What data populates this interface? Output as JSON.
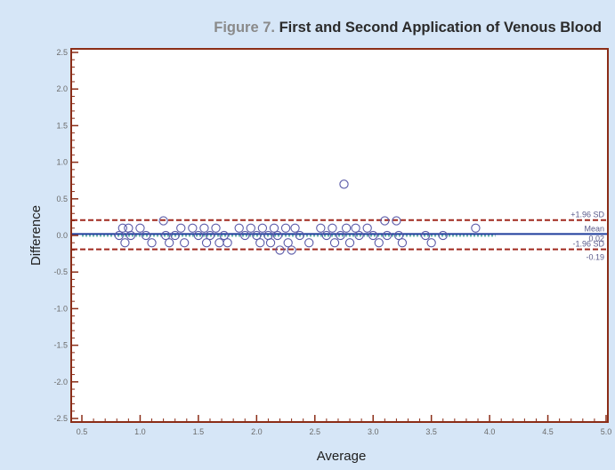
{
  "figure": {
    "number": "Figure 7.",
    "title": "First and Second Application of Venous Blood"
  },
  "colors": {
    "background": "#d6e6f7",
    "plot_background": "#ffffff",
    "frame": "#8b2d17",
    "points": "#5a5aa8",
    "mean_line": "#1f3c9c",
    "sd_lines": "#a0281e",
    "zero_line": "#2e9a8a",
    "axis_text": "#6a6a6a",
    "label_text": "#1e1e1e",
    "annotation_text": "#5a5a8a"
  },
  "chart_data": {
    "type": "scatter",
    "xlabel": "Average",
    "ylabel": "Difference",
    "xlim": [
      0.5,
      5.0
    ],
    "ylim": [
      -2.5,
      2.5
    ],
    "x_ticks": [
      "0.5",
      "1.0",
      "1.5",
      "2.0",
      "2.5",
      "3.0",
      "3.5",
      "4.0",
      "4.5",
      "5.0"
    ],
    "x_tick_values": [
      0.5,
      1.0,
      1.5,
      2.0,
      2.5,
      3.0,
      3.5,
      4.0,
      4.5,
      5.0
    ],
    "y_ticks": [
      "2.5",
      "2.0",
      "1.5",
      "1.0",
      "0.5",
      "0.0",
      "-0.5",
      "-1.0",
      "-1.5",
      "-2.0",
      "-2.5"
    ],
    "y_tick_values": [
      2.5,
      2.0,
      1.5,
      1.0,
      0.5,
      0.0,
      -0.5,
      -1.0,
      -1.5,
      -2.0,
      -2.5
    ],
    "grid": false,
    "reference_lines": [
      {
        "label": "+1.96 SD",
        "y": 0.21,
        "style": "dashed"
      },
      {
        "label": "Mean",
        "value_label": "0.02",
        "y": 0.02,
        "style": "solid"
      },
      {
        "label": "-1.96 SD",
        "value_label": "-0.19",
        "y": -0.19,
        "style": "dashed"
      }
    ],
    "points": [
      {
        "x": 0.82,
        "y": 0.0
      },
      {
        "x": 0.85,
        "y": 0.1
      },
      {
        "x": 0.87,
        "y": -0.1
      },
      {
        "x": 0.9,
        "y": 0.1
      },
      {
        "x": 0.92,
        "y": 0.0
      },
      {
        "x": 1.0,
        "y": 0.1
      },
      {
        "x": 1.05,
        "y": 0.0
      },
      {
        "x": 1.1,
        "y": -0.1
      },
      {
        "x": 1.2,
        "y": 0.2
      },
      {
        "x": 1.22,
        "y": 0.0
      },
      {
        "x": 1.25,
        "y": -0.1
      },
      {
        "x": 1.3,
        "y": 0.0
      },
      {
        "x": 1.35,
        "y": 0.1
      },
      {
        "x": 1.38,
        "y": -0.1
      },
      {
        "x": 1.45,
        "y": 0.1
      },
      {
        "x": 1.5,
        "y": 0.0
      },
      {
        "x": 1.55,
        "y": 0.1
      },
      {
        "x": 1.57,
        "y": -0.1
      },
      {
        "x": 1.6,
        "y": 0.0
      },
      {
        "x": 1.65,
        "y": 0.1
      },
      {
        "x": 1.68,
        "y": -0.1
      },
      {
        "x": 1.72,
        "y": 0.0
      },
      {
        "x": 1.75,
        "y": -0.1
      },
      {
        "x": 1.85,
        "y": 0.1
      },
      {
        "x": 1.9,
        "y": 0.0
      },
      {
        "x": 1.95,
        "y": 0.1
      },
      {
        "x": 2.0,
        "y": 0.0
      },
      {
        "x": 2.03,
        "y": -0.1
      },
      {
        "x": 2.05,
        "y": 0.1
      },
      {
        "x": 2.1,
        "y": 0.0
      },
      {
        "x": 2.12,
        "y": -0.1
      },
      {
        "x": 2.15,
        "y": 0.1
      },
      {
        "x": 2.18,
        "y": 0.0
      },
      {
        "x": 2.2,
        "y": -0.2
      },
      {
        "x": 2.25,
        "y": 0.1
      },
      {
        "x": 2.27,
        "y": -0.1
      },
      {
        "x": 2.3,
        "y": -0.2
      },
      {
        "x": 2.33,
        "y": 0.1
      },
      {
        "x": 2.37,
        "y": 0.0
      },
      {
        "x": 2.45,
        "y": -0.1
      },
      {
        "x": 2.55,
        "y": 0.1
      },
      {
        "x": 2.6,
        "y": 0.0
      },
      {
        "x": 2.65,
        "y": 0.1
      },
      {
        "x": 2.67,
        "y": -0.1
      },
      {
        "x": 2.72,
        "y": 0.0
      },
      {
        "x": 2.75,
        "y": 0.7
      },
      {
        "x": 2.77,
        "y": 0.1
      },
      {
        "x": 2.8,
        "y": -0.1
      },
      {
        "x": 2.85,
        "y": 0.1
      },
      {
        "x": 2.88,
        "y": 0.0
      },
      {
        "x": 2.95,
        "y": 0.1
      },
      {
        "x": 3.0,
        "y": 0.0
      },
      {
        "x": 3.05,
        "y": -0.1
      },
      {
        "x": 3.1,
        "y": 0.2
      },
      {
        "x": 3.12,
        "y": 0.0
      },
      {
        "x": 3.2,
        "y": 0.2
      },
      {
        "x": 3.22,
        "y": 0.0
      },
      {
        "x": 3.25,
        "y": -0.1
      },
      {
        "x": 3.45,
        "y": 0.0
      },
      {
        "x": 3.5,
        "y": -0.1
      },
      {
        "x": 3.6,
        "y": 0.0
      },
      {
        "x": 3.88,
        "y": 0.1
      }
    ]
  }
}
